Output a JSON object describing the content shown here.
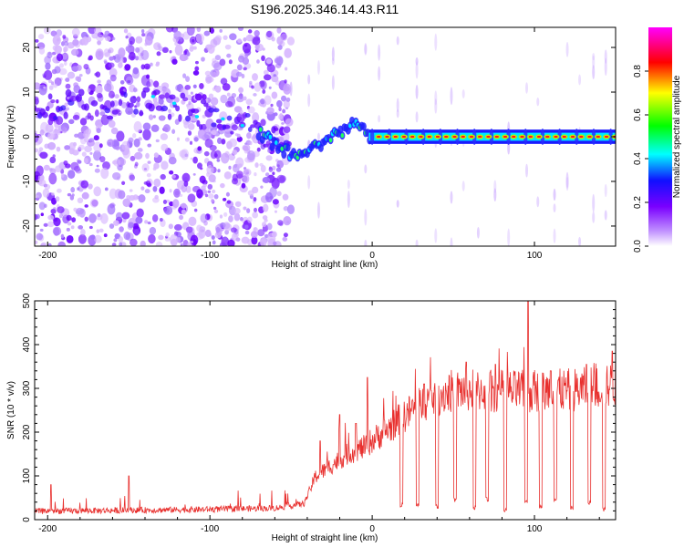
{
  "title": "S196.2025.346.14.43.R11",
  "chart_data": [
    {
      "type": "heatmap",
      "panel": "top",
      "title": "S196.2025.346.14.43.R11",
      "xlabel": "Height of straight line (km)",
      "ylabel": "Frequency (Hz)",
      "xlim": [
        -208,
        150
      ],
      "ylim": [
        -24.5,
        24.5
      ],
      "x_ticks": [
        -200,
        -100,
        0,
        100
      ],
      "x_tick_labels": [
        "-200",
        "-100",
        "0",
        "100"
      ],
      "y_ticks": [
        -20,
        -10,
        0,
        10,
        20
      ],
      "y_tick_labels": [
        "-20",
        "-10",
        "0",
        "10",
        "20"
      ],
      "noise_region_x": [
        -208,
        -50
      ],
      "signal_trace": [
        {
          "x": -210,
          "y": 7
        },
        {
          "x": -150,
          "y": 7
        },
        {
          "x": -135,
          "y": 8
        },
        {
          "x": -120,
          "y": 7
        },
        {
          "x": -105,
          "y": 5
        },
        {
          "x": -90,
          "y": 4
        },
        {
          "x": -75,
          "y": 2
        },
        {
          "x": -62,
          "y": -1
        },
        {
          "x": -52,
          "y": -3.5
        },
        {
          "x": -45,
          "y": -4
        },
        {
          "x": -38,
          "y": -2.5
        },
        {
          "x": -30,
          "y": -1
        },
        {
          "x": -22,
          "y": 0.8
        },
        {
          "x": -15,
          "y": 2
        },
        {
          "x": -10,
          "y": 3
        },
        {
          "x": -5,
          "y": 1
        },
        {
          "x": 0,
          "y": 0
        },
        {
          "x": 150,
          "y": 0
        }
      ],
      "colorbar": {
        "label": "Normalized spectral amplitude",
        "range": [
          0.0,
          1.0
        ],
        "ticks": [
          0.0,
          0.2,
          0.4,
          0.6,
          0.8
        ],
        "tick_labels": [
          "0.0",
          "0.2",
          "0.4",
          "0.6",
          "0.8"
        ],
        "colors": [
          "#ffffff",
          "#b060ff",
          "#1010ff",
          "#00ffff",
          "#00ff00",
          "#ffff00",
          "#ff0000",
          "#ff00ff"
        ]
      }
    },
    {
      "type": "line",
      "panel": "bottom",
      "xlabel": "Height of straight line (km)",
      "ylabel": "SNR (10 * v/v)",
      "xlim": [
        -208,
        150
      ],
      "ylim": [
        0,
        500
      ],
      "x_ticks": [
        -200,
        -100,
        0,
        100
      ],
      "x_tick_labels": [
        "-200",
        "-100",
        "0",
        "100"
      ],
      "y_ticks": [
        0,
        100,
        200,
        300,
        400,
        500
      ],
      "y_tick_labels": [
        "0",
        "100",
        "200",
        "300",
        "400",
        "500"
      ],
      "series": [
        {
          "name": "SNR",
          "color": "#e8302e",
          "baseline": [
            {
              "x": -208,
              "y": 18
            },
            {
              "x": -150,
              "y": 20
            },
            {
              "x": -100,
              "y": 22
            },
            {
              "x": -60,
              "y": 25
            },
            {
              "x": -42,
              "y": 35
            },
            {
              "x": -35,
              "y": 95
            },
            {
              "x": -25,
              "y": 120
            },
            {
              "x": -15,
              "y": 145
            },
            {
              "x": -5,
              "y": 160
            },
            {
              "x": 0,
              "y": 175
            },
            {
              "x": 10,
              "y": 200
            },
            {
              "x": 20,
              "y": 230
            },
            {
              "x": 30,
              "y": 255
            },
            {
              "x": 40,
              "y": 275
            },
            {
              "x": 50,
              "y": 285
            },
            {
              "x": 70,
              "y": 285
            },
            {
              "x": 100,
              "y": 282
            },
            {
              "x": 130,
              "y": 288
            },
            {
              "x": 150,
              "y": 300
            }
          ],
          "spikes": [
            {
              "x": 96,
              "y": 500
            },
            {
              "x": -32,
              "y": 180
            },
            {
              "x": -20,
              "y": 240
            },
            {
              "x": -10,
              "y": 220
            },
            {
              "x": -3,
              "y": 325
            },
            {
              "x": 32,
              "y": 310
            },
            {
              "x": 58,
              "y": 360
            },
            {
              "x": 76,
              "y": 355
            },
            {
              "x": 88,
              "y": 338
            },
            {
              "x": 110,
              "y": 340
            },
            {
              "x": 132,
              "y": 355
            },
            {
              "x": 148,
              "y": 385
            },
            {
              "x": -150,
              "y": 100
            },
            {
              "x": -198,
              "y": 80
            }
          ],
          "dips": [
            {
              "x": 18,
              "y": 28
            },
            {
              "x": 28,
              "y": 30
            },
            {
              "x": 40,
              "y": 25
            },
            {
              "x": 51,
              "y": 40
            },
            {
              "x": 63,
              "y": 22
            },
            {
              "x": 71,
              "y": 42
            },
            {
              "x": 82,
              "y": 18
            },
            {
              "x": 95,
              "y": 35
            },
            {
              "x": 104,
              "y": 25
            },
            {
              "x": 113,
              "y": 40
            },
            {
              "x": 123,
              "y": 22
            },
            {
              "x": 134,
              "y": 35
            },
            {
              "x": 143,
              "y": 18
            }
          ]
        }
      ]
    }
  ]
}
